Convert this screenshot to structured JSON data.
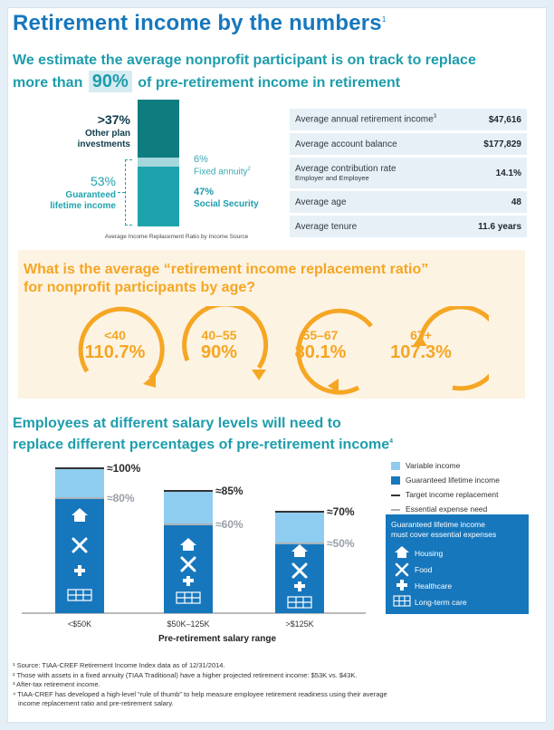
{
  "title": "Retirement income by the numbers",
  "title_note": "1",
  "subhead": {
    "line1": "We estimate the average nonprofit participant is on track to replace",
    "line2_pre": "more than",
    "highlight": "90%",
    "line2_post": "of pre-retirement income in retirement"
  },
  "sources": {
    "other_pct": ">37%",
    "other_label1": "Other plan",
    "other_label2": "investments",
    "guaranteed_pct": "53%",
    "guaranteed_label1": "Guaranteed",
    "guaranteed_label2": "lifetime income",
    "fixed_pct": "6%",
    "fixed_label": "Fixed annuity",
    "fixed_note": "2",
    "ss_pct": "47%",
    "ss_label": "Social Security",
    "caption": "Average Income Replacement Ratio by Income Source"
  },
  "stats": [
    {
      "label": "Average annual retirement income",
      "note": "3",
      "sub": "",
      "value": "$47,616"
    },
    {
      "label": "Average account balance",
      "note": "",
      "sub": "",
      "value": "$177,829"
    },
    {
      "label": "Average contribution rate",
      "note": "",
      "sub": "Employer and Employee",
      "value": "14.1%"
    },
    {
      "label": "Average age",
      "note": "",
      "sub": "",
      "value": "48"
    },
    {
      "label": "Average tenure",
      "note": "",
      "sub": "",
      "value": "11.6 years"
    }
  ],
  "ratio": {
    "title1": "What is the average “retirement income replacement ratio”",
    "title2": "for nonprofit participants by age?",
    "rings": [
      {
        "age": "<40",
        "value": "110.7%"
      },
      {
        "age": "40–55",
        "value": "90%"
      },
      {
        "age": "55–67",
        "value": "80.1%"
      },
      {
        "age": "67+",
        "value": "107.3%"
      }
    ]
  },
  "salary": {
    "title1": "Employees at different salary levels will need to",
    "title2": "replace different percentages of pre-retirement income",
    "title_note": "4",
    "bars": [
      {
        "label": "<$50K",
        "target": "≈100%",
        "essential": "≈80%"
      },
      {
        "label": "$50K–125K",
        "target": "≈85%",
        "essential": "≈60%"
      },
      {
        "label": ">$125K",
        "target": "≈70%",
        "essential": "≈50%"
      }
    ],
    "x_title": "Pre-retirement salary range",
    "legend": [
      "Variable income",
      "Guaranteed lifetime income",
      "Target income replacement",
      "Essential expense need"
    ],
    "gl_title1": "Guaranteed lifetime income",
    "gl_title2": "must cover essential expenses",
    "gl_items": [
      "Housing",
      "Food",
      "Healthcare",
      "Long-term care"
    ]
  },
  "footnotes": [
    "¹ Source: TIAA-CREF Retirement Income Index data as of 12/31/2014.",
    "² Those with assets in a fixed annuity (TIAA Traditional) have a higher projected retirement income: $53K vs. $43K.",
    "³ After-tax retirement income.",
    "⁴ TIAA-CREF has developed a high-level “rule of thumb” to help measure employee retirement readiness using their average",
    "income replacement ratio and pre-retirement salary."
  ],
  "colors": {
    "brand_blue": "#1777bd",
    "teal": "#1e9dac",
    "orange": "#f5a623",
    "light_blue": "#8fcdf0"
  }
}
